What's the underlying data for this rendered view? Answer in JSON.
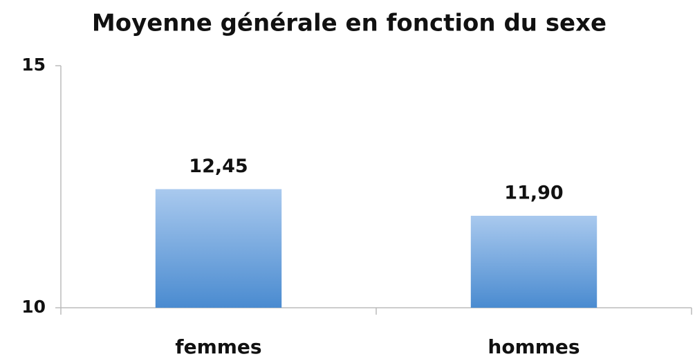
{
  "chart_data": {
    "type": "bar",
    "title": "Moyenne générale en fonction du sexe",
    "categories": [
      "femmes",
      "hommes"
    ],
    "values": [
      12.45,
      11.9
    ],
    "value_labels": [
      "12,45",
      "11,90"
    ],
    "color": "#4a8bd0",
    "ylim": [
      10,
      15
    ],
    "yticks": [
      10,
      15
    ],
    "grid": false
  }
}
